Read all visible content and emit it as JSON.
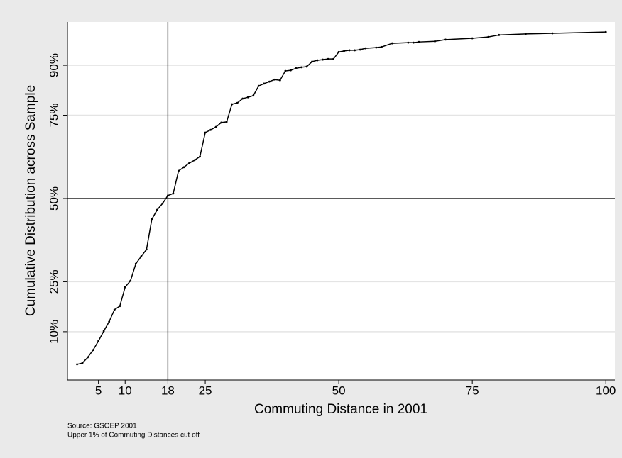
{
  "chart_data": {
    "type": "line",
    "x_label": "Commuting Distance in 2001",
    "y_label": "Cumulative Distribution across Sample",
    "notes": [
      "Source: GSOEP 2001",
      "Upper 1% of Commuting Distances cut off"
    ],
    "x": [
      1,
      2,
      3,
      4,
      5,
      6,
      7,
      8,
      9,
      10,
      11,
      12,
      13,
      14,
      15,
      16,
      17,
      18,
      19,
      20,
      21,
      22,
      23,
      24,
      25,
      26,
      27,
      28,
      29,
      30,
      31,
      32,
      33,
      34,
      35,
      36,
      37,
      38,
      39,
      40,
      41,
      42,
      43,
      44,
      45,
      46,
      47,
      48,
      49,
      50,
      51,
      52,
      53,
      54,
      55,
      57,
      58,
      60,
      63,
      64,
      65,
      68,
      70,
      75,
      78,
      80,
      85,
      90,
      100
    ],
    "values": [
      0.2,
      0.6,
      2.3,
      4.5,
      7.2,
      10.2,
      13.0,
      16.6,
      17.7,
      23.4,
      25.3,
      30.4,
      32.6,
      34.7,
      43.8,
      46.6,
      48.5,
      50.9,
      51.5,
      58.3,
      59.4,
      60.6,
      61.5,
      62.6,
      69.8,
      70.6,
      71.5,
      72.8,
      73.0,
      78.3,
      78.7,
      80.0,
      80.4,
      80.9,
      83.8,
      84.5,
      85.1,
      85.7,
      85.5,
      88.3,
      88.5,
      89.1,
      89.4,
      89.6,
      91.1,
      91.5,
      91.7,
      91.9,
      91.9,
      94.0,
      94.3,
      94.5,
      94.5,
      94.7,
      95.1,
      95.3,
      95.5,
      96.6,
      96.8,
      96.8,
      97.0,
      97.2,
      97.7,
      98.1,
      98.5,
      99.1,
      99.4,
      99.6,
      100.0
    ],
    "color": "#000000",
    "xlim": [
      -0.8,
      101.7
    ],
    "ylim": [
      -4.5,
      103
    ],
    "xticks": [
      5,
      10,
      18,
      25,
      50,
      75,
      100
    ],
    "yticks": [
      {
        "value": 10,
        "label": "10%"
      },
      {
        "value": 25,
        "label": "25%"
      },
      {
        "value": 50,
        "label": "50%"
      },
      {
        "value": 75,
        "label": "75%"
      },
      {
        "value": 90,
        "label": "90%"
      }
    ],
    "grid": true,
    "xline": 18,
    "yline": 50
  }
}
